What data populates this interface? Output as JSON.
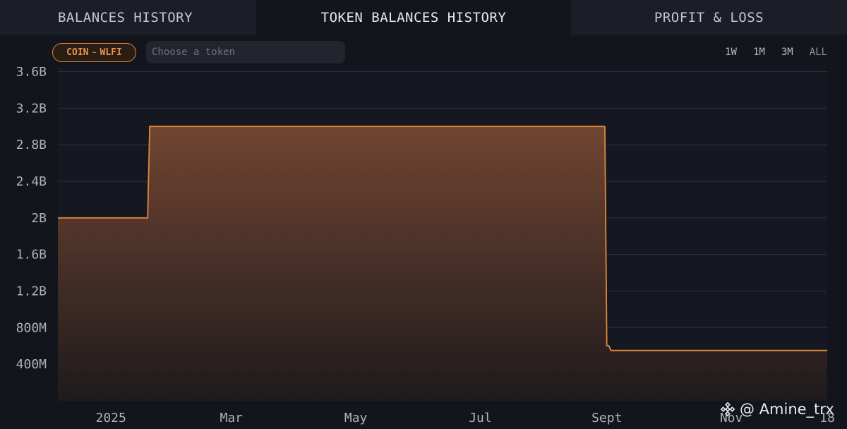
{
  "tabs": [
    {
      "label": "BALANCES HISTORY",
      "active": false
    },
    {
      "label": "TOKEN BALANCES HISTORY",
      "active": true
    },
    {
      "label": "PROFIT & LOSS",
      "active": false
    }
  ],
  "filter": {
    "left": "COIN",
    "separator": "~",
    "right": "WLFI"
  },
  "search": {
    "placeholder": "Choose a token",
    "value": ""
  },
  "ranges": [
    "1W",
    "1M",
    "3M",
    "ALL"
  ],
  "colors": {
    "accent": "#e0883a",
    "fill_top": "#714532",
    "fill_bottom": "#1e1a1c",
    "grid": "#2e3038"
  },
  "watermark": {
    "icon": "binance-logo-icon",
    "text": "@ Amine_trx"
  },
  "chart_data": {
    "type": "area",
    "title": "",
    "xlabel": "",
    "ylabel": "",
    "y_ticks": [
      {
        "value": 400000000,
        "label": "400M"
      },
      {
        "value": 800000000,
        "label": "800M"
      },
      {
        "value": 1200000000,
        "label": "1.2B"
      },
      {
        "value": 1600000000,
        "label": "1.6B"
      },
      {
        "value": 2000000000,
        "label": "2B"
      },
      {
        "value": 2400000000,
        "label": "2.4B"
      },
      {
        "value": 2800000000,
        "label": "2.8B"
      },
      {
        "value": 3200000000,
        "label": "3.2B"
      },
      {
        "value": 3600000000,
        "label": "3.6B"
      }
    ],
    "x_ticks": [
      {
        "date": "2025-01-01",
        "label": "2025"
      },
      {
        "date": "2025-03-01",
        "label": "Mar"
      },
      {
        "date": "2025-05-01",
        "label": "May"
      },
      {
        "date": "2025-07-01",
        "label": "Jul"
      },
      {
        "date": "2025-09-01",
        "label": "Sept"
      },
      {
        "date": "2025-11-01",
        "label": "Nov"
      },
      {
        "date": "2025-12-18",
        "label": "18"
      }
    ],
    "xlim": [
      "2024-12-06",
      "2025-12-18"
    ],
    "ylim": [
      0,
      3650000000
    ],
    "grid": "horizontal",
    "series": [
      {
        "points": [
          {
            "x": "2024-12-06",
            "y": 2000000000
          },
          {
            "x": "2025-01-19",
            "y": 2000000000
          },
          {
            "x": "2025-01-20",
            "y": 3000000000
          },
          {
            "x": "2025-08-31",
            "y": 3000000000
          },
          {
            "x": "2025-09-01",
            "y": 600000000
          },
          {
            "x": "2025-09-02",
            "y": 600000000
          },
          {
            "x": "2025-09-03",
            "y": 550000000
          },
          {
            "x": "2025-12-18",
            "y": 550000000
          }
        ]
      }
    ]
  }
}
